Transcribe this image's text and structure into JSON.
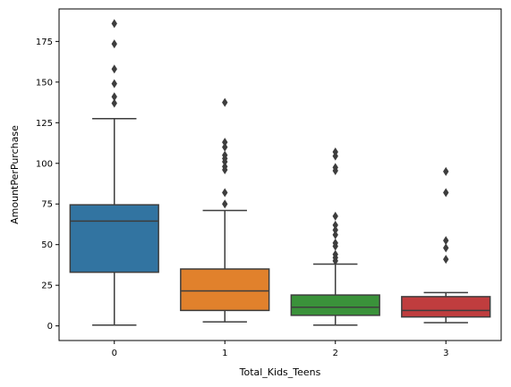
{
  "chart_data": {
    "type": "box",
    "title": "",
    "xlabel": "Total_Kids_Teens",
    "ylabel": "AmountPerPurchase",
    "ylim": [
      -9,
      195
    ],
    "yticks": [
      0,
      25,
      50,
      75,
      100,
      125,
      150,
      175
    ],
    "grid": false,
    "legend": "none",
    "categories": [
      "0",
      "1",
      "2",
      "3"
    ],
    "boxes": [
      {
        "category": "0",
        "color": "#3274a1",
        "whisker_low": 0.5,
        "q1": 33,
        "median": 64.5,
        "q3": 74.5,
        "whisker_high": 127.5,
        "outliers": [
          186,
          173.5,
          158,
          149,
          141,
          137
        ]
      },
      {
        "category": "1",
        "color": "#e1812c",
        "whisker_low": 2.5,
        "q1": 9.5,
        "median": 21.5,
        "q3": 35,
        "whisker_high": 71,
        "outliers": [
          137.5,
          113,
          110,
          105,
          103,
          101,
          98,
          96,
          82,
          75
        ]
      },
      {
        "category": "2",
        "color": "#3a923a",
        "whisker_low": 0.5,
        "q1": 6.5,
        "median": 11.5,
        "q3": 19,
        "whisker_high": 38,
        "outliers": [
          107,
          104.5,
          97.5,
          95.5,
          67.5,
          62,
          59,
          56,
          51,
          49,
          44,
          42,
          40
        ]
      },
      {
        "category": "3",
        "color": "#c03d3e",
        "whisker_low": 2,
        "q1": 5.5,
        "median": 9.5,
        "q3": 18,
        "whisker_high": 20.5,
        "outliers": [
          95,
          82,
          52.5,
          48,
          41
        ]
      }
    ]
  }
}
